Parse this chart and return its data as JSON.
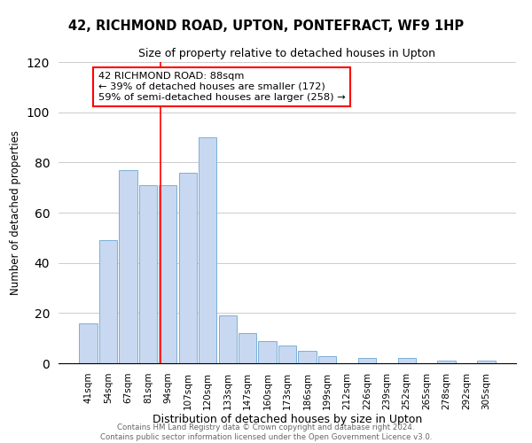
{
  "title1": "42, RICHMOND ROAD, UPTON, PONTEFRACT, WF9 1HP",
  "title2": "Size of property relative to detached houses in Upton",
  "xlabel": "Distribution of detached houses by size in Upton",
  "ylabel": "Number of detached properties",
  "bar_color": "#c8d8f0",
  "bar_edge_color": "#7ab0d8",
  "categories": [
    "41sqm",
    "54sqm",
    "67sqm",
    "81sqm",
    "94sqm",
    "107sqm",
    "120sqm",
    "133sqm",
    "147sqm",
    "160sqm",
    "173sqm",
    "186sqm",
    "199sqm",
    "212sqm",
    "226sqm",
    "239sqm",
    "252sqm",
    "265sqm",
    "278sqm",
    "292sqm",
    "305sqm"
  ],
  "values": [
    16,
    49,
    77,
    71,
    71,
    76,
    90,
    19,
    12,
    9,
    7,
    5,
    3,
    0,
    2,
    0,
    2,
    0,
    1,
    0,
    1
  ],
  "ylim": [
    0,
    120
  ],
  "yticks": [
    0,
    20,
    40,
    60,
    80,
    100,
    120
  ],
  "annotation_title": "42 RICHMOND ROAD: 88sqm",
  "annotation_line1": "← 39% of detached houses are smaller (172)",
  "annotation_line2": "59% of semi-detached houses are larger (258) →",
  "annotation_box_color": "white",
  "annotation_box_edge_color": "red",
  "vline_x_idx": 3.62,
  "footer1": "Contains HM Land Registry data © Crown copyright and database right 2024.",
  "footer2": "Contains public sector information licensed under the Open Government Licence v3.0."
}
